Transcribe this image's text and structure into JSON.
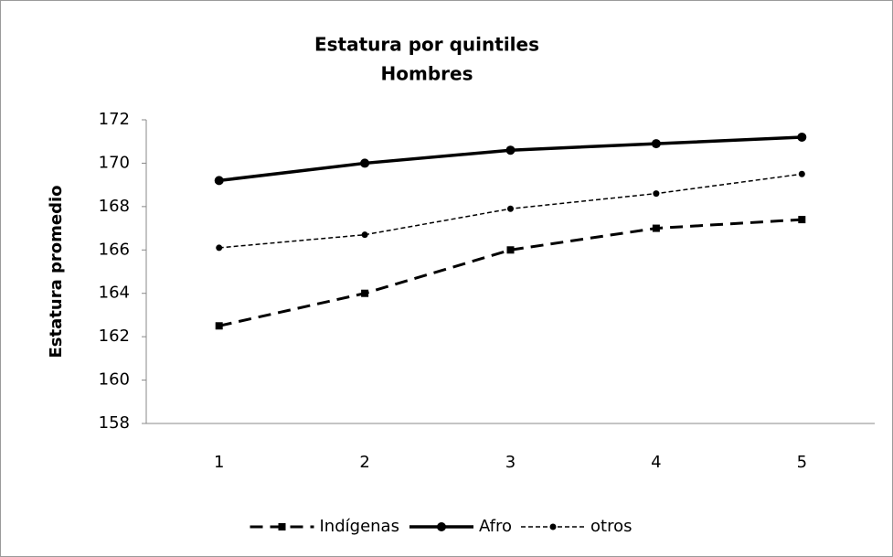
{
  "chart_data": {
    "type": "line",
    "title": "Estatura por quintiles",
    "subtitle": "Hombres",
    "y_label": "Estatura promedio",
    "categories": [
      "1",
      "2",
      "3",
      "4",
      "5"
    ],
    "series": [
      {
        "name": "Indígenas",
        "color": "#000000",
        "line_style": "dashed",
        "values": [
          162.5,
          164.0,
          166.0,
          167.0,
          167.4
        ]
      },
      {
        "name": "Afro",
        "color": "#000000",
        "line_style": "solid",
        "values": [
          169.2,
          170.0,
          170.6,
          170.9,
          171.2
        ]
      },
      {
        "name": "otros",
        "color": "#000000",
        "line_style": "dotted",
        "values": [
          166.1,
          166.7,
          167.9,
          168.6,
          169.5
        ]
      }
    ],
    "ylim": [
      158,
      172
    ],
    "yticks": [
      158,
      160,
      162,
      164,
      166,
      168,
      170,
      172
    ],
    "grid": false,
    "legend": "bottom"
  }
}
